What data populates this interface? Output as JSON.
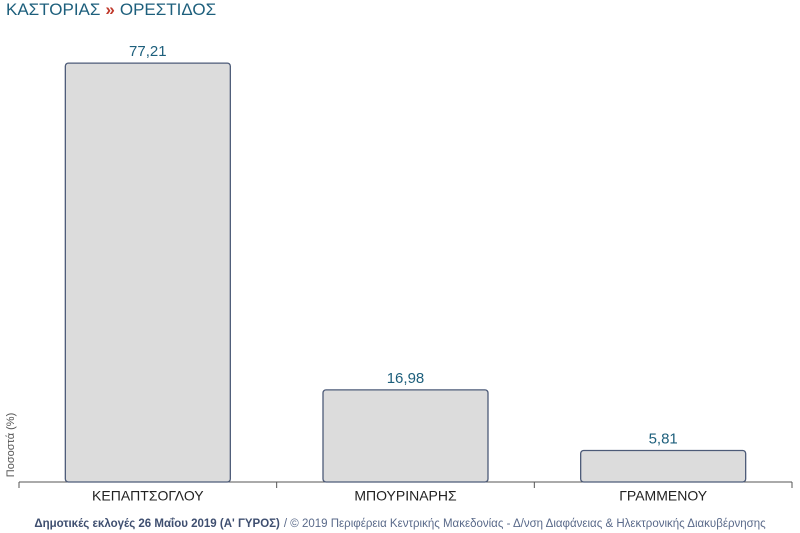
{
  "chart_data": {
    "type": "bar",
    "title_parts": [
      "ΚΑΣΤΟΡΙΑΣ",
      "»",
      "ΟΡΕΣΤΙΔΟΣ"
    ],
    "title_colors": [
      "#1d5f7c",
      "#c0392b",
      "#1d5f7c"
    ],
    "y_label": "Ποσοστά (%)",
    "categories": [
      "ΚΕΠΑΠΤΣΟΓΛΟΥ",
      "ΜΠΟΥΡΙΝΑΡΗΣ",
      "ΓΡΑΜΜΕΝΟΥ"
    ],
    "values": [
      77.21,
      16.98,
      5.81
    ],
    "value_labels": [
      "77,21",
      "16,98",
      "5,81"
    ],
    "color": "#dcdcdc",
    "edge_color": "#4d5b78",
    "ylim": [
      0,
      80
    ],
    "footer_bold": "Δημοτικές εκλογές 26 Μαΐου 2019 (Α' ΓΥΡΟΣ)",
    "footer_text": "/ © 2019 Περιφέρεια Κεντρικής Μακεδονίας - Δ/νση Διαφάνειας & Ηλεκτρονικής Διακυβέρνησης"
  }
}
